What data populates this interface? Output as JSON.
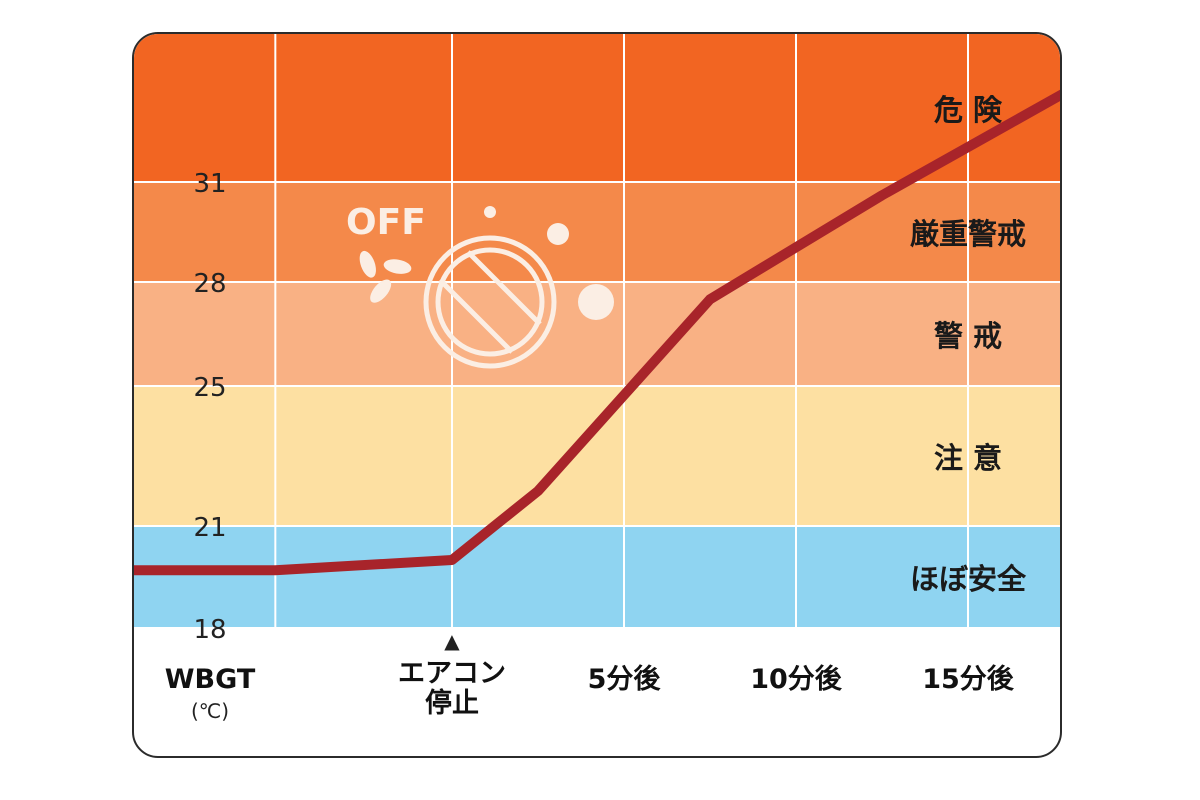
{
  "chart_data": {
    "type": "line",
    "y_axis_title": "WBGT",
    "y_axis_unit": "(℃)",
    "ylim": [
      18,
      33
    ],
    "yticks": [
      18,
      21,
      25,
      28,
      31
    ],
    "x_ticks": [
      {
        "label": "エアコン停止",
        "line1": "エアコン",
        "line2": "停止",
        "marker": "▲",
        "x": 0
      },
      {
        "label": "5分後",
        "x": 5
      },
      {
        "label": "10分後",
        "x": 10
      },
      {
        "label": "15分後",
        "x": 15
      }
    ],
    "xlim": [
      -9,
      18
    ],
    "zones": [
      {
        "label": "危険",
        "from": 31,
        "to": 33,
        "color": "#f26522"
      },
      {
        "label": "厳重警戒",
        "from": 28,
        "to": 31,
        "color": "#f4894a"
      },
      {
        "label": "警戒",
        "from": 25,
        "to": 28,
        "color": "#f9b184"
      },
      {
        "label": "注意",
        "from": 21,
        "to": 25,
        "color": "#fde0a2"
      },
      {
        "label": "ほぼ安全",
        "from": 18,
        "to": 21,
        "color": "#8fd4f1"
      }
    ],
    "series": [
      {
        "color": "#a8242a",
        "points": [
          {
            "x": -9,
            "y": 19.7
          },
          {
            "x": -5,
            "y": 19.7
          },
          {
            "x": 0,
            "y": 20.0
          },
          {
            "x": 2.5,
            "y": 22.0
          },
          {
            "x": 7.5,
            "y": 27.5
          },
          {
            "x": 12.5,
            "y": 30.6
          },
          {
            "x": 18,
            "y": 32.2
          }
        ]
      }
    ],
    "grid": true,
    "annotation": {
      "text": "OFF",
      "icon": "air-conditioner-off-icon"
    }
  }
}
